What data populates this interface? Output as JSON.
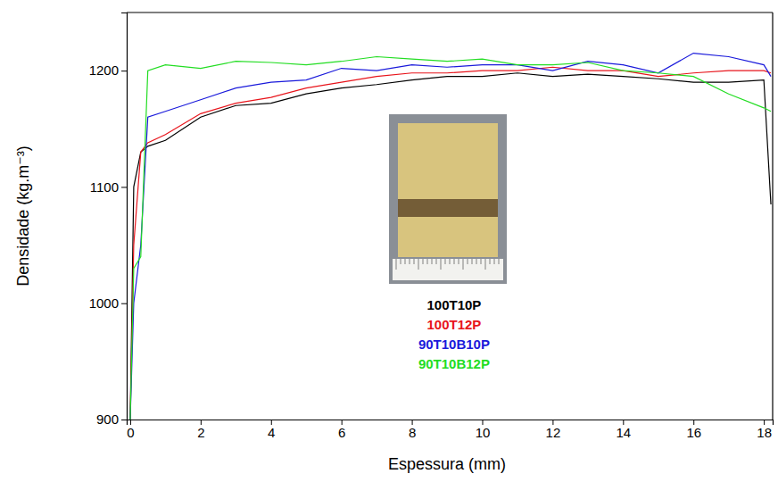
{
  "chart_data": {
    "type": "line",
    "x_label": "Espessura (mm)",
    "y_label": "Densidade (kg.m⁻³)",
    "x": [
      0,
      0.1,
      0.3,
      0.5,
      1,
      2,
      3,
      4,
      5,
      6,
      7,
      8,
      9,
      10,
      11,
      12,
      13,
      14,
      15,
      16,
      17,
      18,
      18.2
    ],
    "series": [
      {
        "name": "100T10P",
        "color": "#000000",
        "values": [
          900,
          1100,
          1130,
          1135,
          1140,
          1160,
          1170,
          1172,
          1180,
          1185,
          1188,
          1192,
          1195,
          1195,
          1198,
          1195,
          1197,
          1195,
          1193,
          1190,
          1190,
          1192,
          1085
        ]
      },
      {
        "name": "100T12P",
        "color": "#e8141b",
        "values": [
          900,
          1050,
          1130,
          1138,
          1145,
          1163,
          1172,
          1177,
          1185,
          1190,
          1195,
          1198,
          1198,
          1200,
          1200,
          1203,
          1200,
          1200,
          1195,
          1198,
          1200,
          1200,
          1198
        ]
      },
      {
        "name": "90T10B10P",
        "color": "#1a1adb",
        "values": [
          900,
          1000,
          1050,
          1160,
          1165,
          1175,
          1185,
          1190,
          1192,
          1202,
          1200,
          1205,
          1203,
          1205,
          1205,
          1200,
          1208,
          1205,
          1198,
          1215,
          1212,
          1205,
          1195
        ]
      },
      {
        "name": "90T10B12P",
        "color": "#22dd22",
        "values": [
          900,
          1030,
          1040,
          1200,
          1205,
          1202,
          1208,
          1207,
          1205,
          1208,
          1212,
          1210,
          1208,
          1210,
          1205,
          1205,
          1207,
          1200,
          1198,
          1195,
          1180,
          1168,
          1165
        ]
      }
    ],
    "xlim": [
      -0.1,
      18.25
    ],
    "ylim": [
      900,
      1250
    ],
    "xticks": [
      0,
      2,
      4,
      6,
      8,
      10,
      12,
      14,
      16,
      18
    ],
    "yticks": [
      900,
      1000,
      1100,
      1200
    ],
    "grid": false,
    "legend": "center"
  }
}
